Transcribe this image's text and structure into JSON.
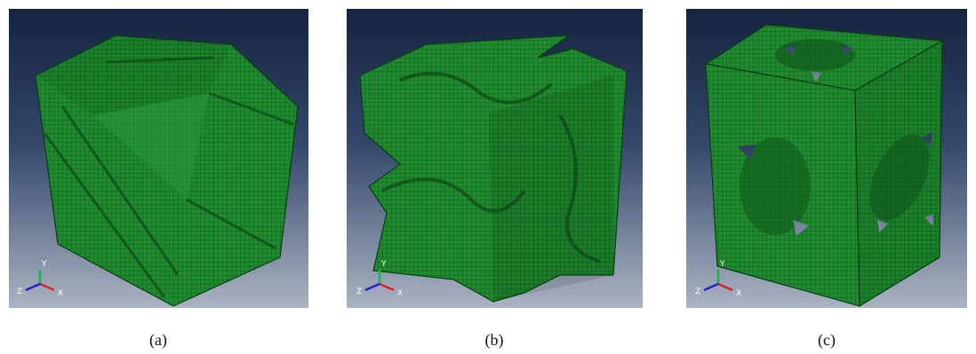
{
  "panels": [
    {
      "caption": "(a)",
      "axes": {
        "y": "Y",
        "z": "Z",
        "x": "X"
      }
    },
    {
      "caption": "(b)",
      "axes": {
        "y": "Y",
        "z": "Z",
        "x": "X"
      }
    },
    {
      "caption": "(c)",
      "axes": {
        "y": "Y",
        "z": "Z",
        "x": "X"
      }
    }
  ]
}
